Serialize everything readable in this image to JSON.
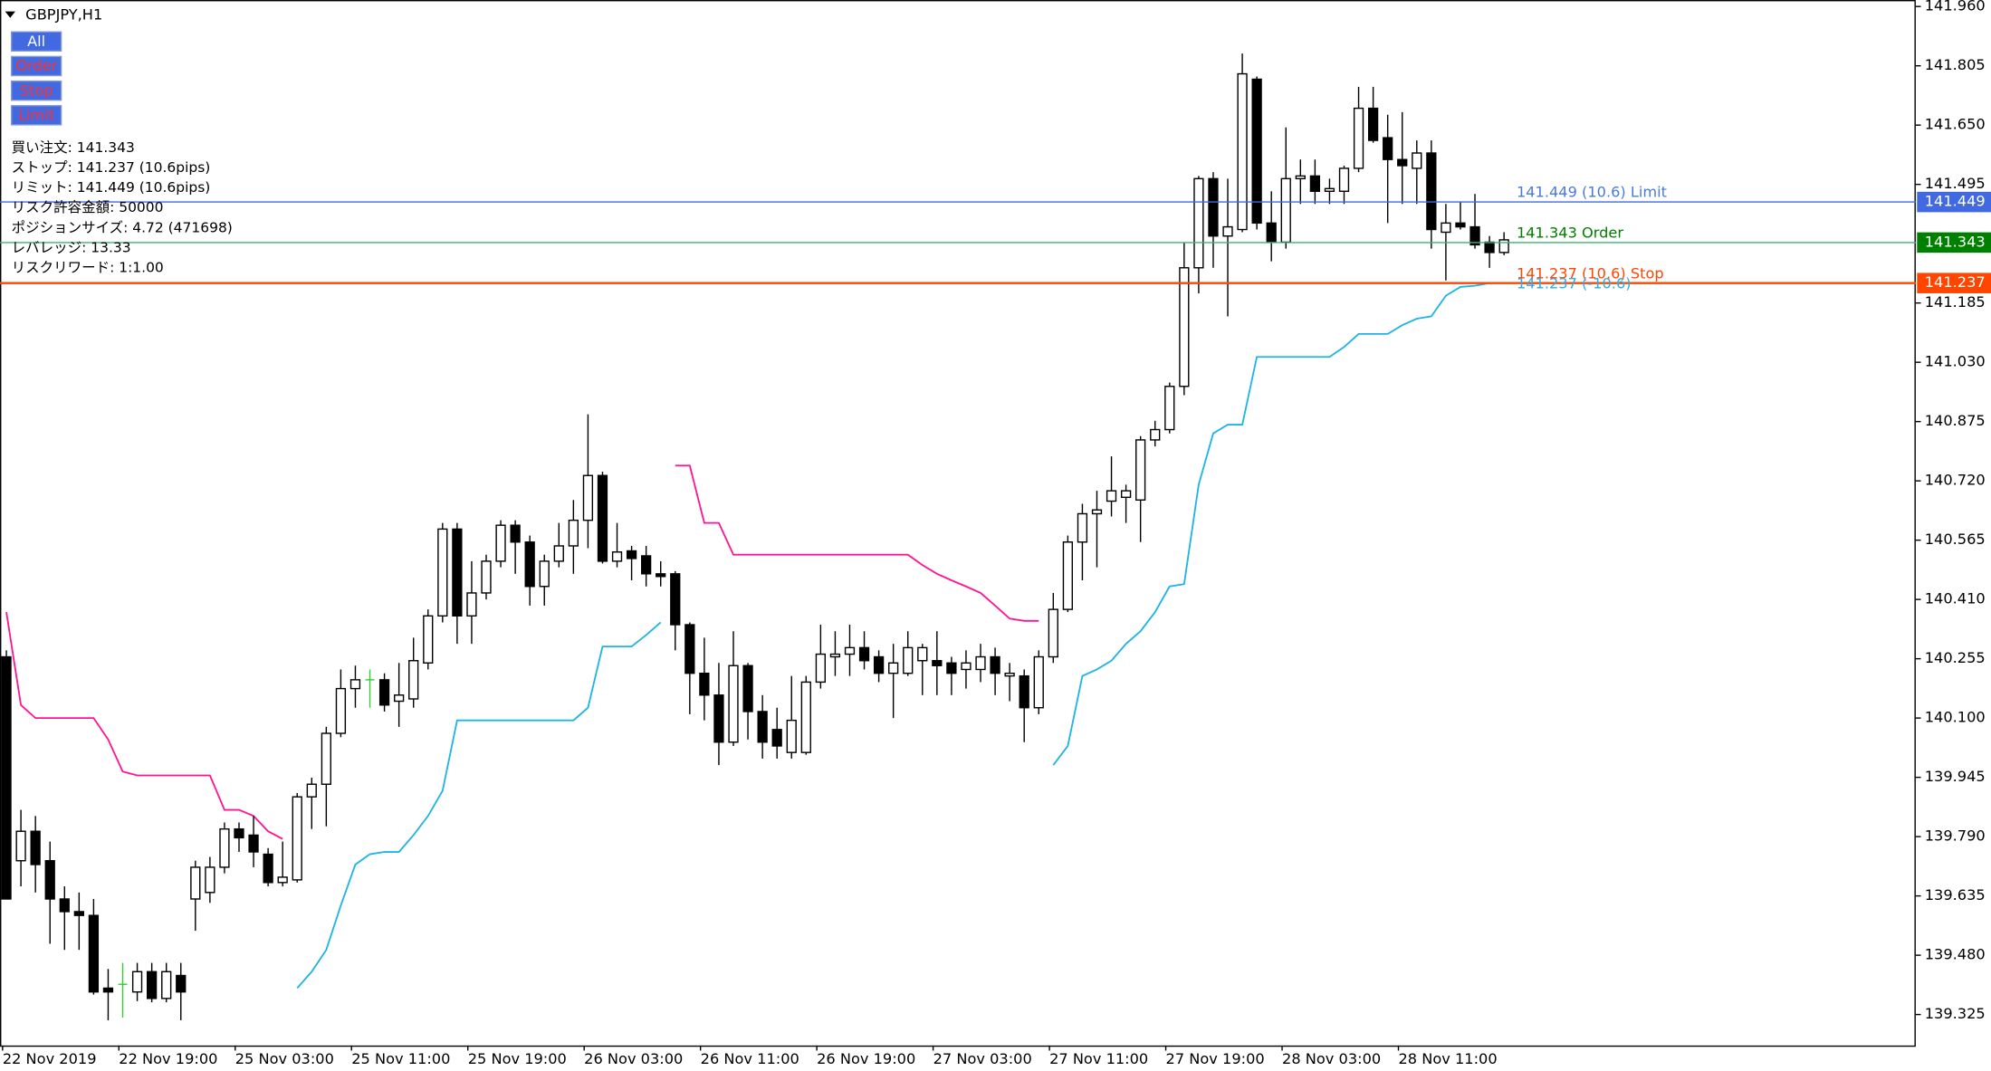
{
  "chart_data": {
    "type": "candlestick",
    "title": "GBPJPY,H1",
    "categories": [
      "22 Nov 2019",
      null,
      null,
      null,
      null,
      null,
      null,
      null,
      "22 Nov 19:00",
      null,
      null,
      null,
      null,
      null,
      null,
      null,
      "25 Nov 03:00",
      null,
      null,
      null,
      null,
      null,
      null,
      null,
      "25 Nov 11:00",
      null,
      null,
      null,
      null,
      null,
      null,
      null,
      "25 Nov 19:00",
      null,
      null,
      null,
      null,
      null,
      null,
      null,
      "26 Nov 03:00",
      null,
      null,
      null,
      null,
      null,
      null,
      null,
      "26 Nov 11:00",
      null,
      null,
      null,
      null,
      null,
      null,
      null,
      "26 Nov 19:00",
      null,
      null,
      null,
      null,
      null,
      null,
      null,
      "27 Nov 03:00",
      null,
      null,
      null,
      null,
      null,
      null,
      null,
      "27 Nov 11:00",
      null,
      null,
      null,
      null,
      null,
      null,
      null,
      "27 Nov 19:00",
      null,
      null,
      null,
      null,
      null,
      null,
      null,
      "28 Nov 03:00",
      null,
      null,
      null,
      null,
      null,
      null,
      null,
      "28 Nov 11:00",
      null,
      null,
      null,
      null,
      null,
      null,
      null
    ],
    "open": [
      140.26,
      139.727,
      139.804,
      139.727,
      139.627,
      139.594,
      139.584,
      139.394,
      139.404,
      139.384,
      139.437,
      139.367,
      139.427,
      139.627,
      139.644,
      139.71,
      139.81,
      139.794,
      139.744,
      139.67,
      139.677,
      139.894,
      139.927,
      140.06,
      140.177,
      140.2,
      140.2,
      140.144,
      140.15,
      140.244,
      140.367,
      140.594,
      140.367,
      140.427,
      140.51,
      140.604,
      140.56,
      140.444,
      140.51,
      140.55,
      140.617,
      140.734,
      140.51,
      140.537,
      140.524,
      140.477,
      140.477,
      140.344,
      140.217,
      140.16,
      140.037,
      140.237,
      140.117,
      140.07,
      140.01,
      140.01,
      140.194,
      140.26,
      140.267,
      140.284,
      140.26,
      140.217,
      140.217,
      140.25,
      140.25,
      140.244,
      140.227,
      140.227,
      140.26,
      140.21,
      140.21,
      140.127,
      140.26,
      140.384,
      140.56,
      140.634,
      140.667,
      140.677,
      140.67,
      140.827,
      140.854,
      140.967,
      141.277,
      141.51,
      141.36,
      141.377,
      141.77,
      141.394,
      141.344,
      141.51,
      141.517,
      141.477,
      141.477,
      141.537,
      141.694,
      141.617,
      141.56,
      141.537,
      141.577,
      141.37,
      141.394,
      141.384,
      141.344,
      141.317
    ],
    "high": [
      140.277,
      139.86,
      139.844,
      139.777,
      139.66,
      139.644,
      139.627,
      139.444,
      139.46,
      139.46,
      139.46,
      139.46,
      139.46,
      139.727,
      139.737,
      139.827,
      139.827,
      139.844,
      139.76,
      139.777,
      139.904,
      139.944,
      140.077,
      140.227,
      140.237,
      140.227,
      140.217,
      140.244,
      140.31,
      140.384,
      140.61,
      140.61,
      140.51,
      140.527,
      140.617,
      140.617,
      140.577,
      140.527,
      140.61,
      140.67,
      140.894,
      140.744,
      140.61,
      140.55,
      140.55,
      140.51,
      140.484,
      140.35,
      140.31,
      140.244,
      140.327,
      140.244,
      140.16,
      140.127,
      140.21,
      140.21,
      140.344,
      140.327,
      140.344,
      140.327,
      140.277,
      140.294,
      140.327,
      140.294,
      140.327,
      140.26,
      140.277,
      140.294,
      140.284,
      140.244,
      140.227,
      140.277,
      140.427,
      140.577,
      140.66,
      140.694,
      140.784,
      140.71,
      140.837,
      140.877,
      140.977,
      141.344,
      141.517,
      141.527,
      141.51,
      141.837,
      141.777,
      141.477,
      141.644,
      141.56,
      141.56,
      141.51,
      141.544,
      141.75,
      141.75,
      141.677,
      141.684,
      141.61,
      141.61,
      141.444,
      141.45,
      141.47,
      141.36,
      141.37
    ],
    "low": [
      139.627,
      139.66,
      139.644,
      139.51,
      139.494,
      139.494,
      139.377,
      139.31,
      139.317,
      139.36,
      139.357,
      139.357,
      139.31,
      139.544,
      139.617,
      139.694,
      139.75,
      139.71,
      139.66,
      139.66,
      139.67,
      139.81,
      139.817,
      140.05,
      140.127,
      140.127,
      140.117,
      140.077,
      140.127,
      140.227,
      140.35,
      140.294,
      140.294,
      140.41,
      140.494,
      140.477,
      140.394,
      140.394,
      140.494,
      140.477,
      140.544,
      140.504,
      140.494,
      140.46,
      140.444,
      140.444,
      140.277,
      140.11,
      140.094,
      139.977,
      140.027,
      140.044,
      139.994,
      139.994,
      139.994,
      140.004,
      140.177,
      140.21,
      140.21,
      140.227,
      140.194,
      140.1,
      140.21,
      140.16,
      140.16,
      140.16,
      140.177,
      140.194,
      140.16,
      140.144,
      140.037,
      140.11,
      140.244,
      140.377,
      140.46,
      140.494,
      140.627,
      140.61,
      140.56,
      140.81,
      140.844,
      140.944,
      141.21,
      141.277,
      141.15,
      141.37,
      141.377,
      141.294,
      141.327,
      141.444,
      141.444,
      141.444,
      141.444,
      141.527,
      141.604,
      141.394,
      141.444,
      141.444,
      141.327,
      141.244,
      141.377,
      141.327,
      141.277,
      141.31
    ],
    "close": [
      139.627,
      139.804,
      139.717,
      139.627,
      139.594,
      139.584,
      139.384,
      139.384,
      139.404,
      139.437,
      139.367,
      139.437,
      139.384,
      139.71,
      139.71,
      139.81,
      139.787,
      139.75,
      139.67,
      139.684,
      139.894,
      139.927,
      140.06,
      140.177,
      140.2,
      140.2,
      140.134,
      140.16,
      140.25,
      140.367,
      140.594,
      140.367,
      140.427,
      140.51,
      140.604,
      140.56,
      140.444,
      140.51,
      140.55,
      140.617,
      140.734,
      140.51,
      140.534,
      140.517,
      140.477,
      140.47,
      140.344,
      140.217,
      140.16,
      140.037,
      140.237,
      140.117,
      140.037,
      140.027,
      140.094,
      140.194,
      140.267,
      140.267,
      140.284,
      140.25,
      140.217,
      140.244,
      140.284,
      140.284,
      140.237,
      140.217,
      140.244,
      140.26,
      140.217,
      140.217,
      140.127,
      140.26,
      140.384,
      140.56,
      140.634,
      140.644,
      140.694,
      140.694,
      140.827,
      140.854,
      140.967,
      141.277,
      141.51,
      141.36,
      141.384,
      141.784,
      141.394,
      141.344,
      141.51,
      141.517,
      141.477,
      141.484,
      141.537,
      141.694,
      141.61,
      141.56,
      141.544,
      141.577,
      141.377,
      141.394,
      141.384,
      141.337,
      141.317,
      141.35
    ],
    "up_color": "#ffffff",
    "down_color": "#000000",
    "doji_color": "#32cd32",
    "lines": [
      {
        "color": "#ff1493",
        "values": [
          140.377,
          140.134,
          140.1,
          140.1,
          140.1,
          140.1,
          140.1,
          140.044,
          139.96,
          139.95,
          139.95,
          139.95,
          139.95,
          139.95,
          139.95,
          139.86,
          139.86,
          139.844,
          139.804,
          139.784,
          null,
          null,
          null,
          null,
          null,
          null,
          null,
          null,
          null,
          null,
          null,
          null,
          null,
          null,
          null,
          null,
          null,
          null,
          null,
          null,
          null,
          null,
          null,
          null,
          null,
          null,
          140.76,
          140.76,
          140.61,
          140.61,
          140.527,
          140.527,
          140.527,
          140.527,
          140.527,
          140.527,
          140.527,
          140.527,
          140.527,
          140.527,
          140.527,
          140.527,
          140.527,
          140.5,
          140.477,
          140.46,
          140.444,
          140.427,
          140.394,
          140.36,
          140.354,
          140.354,
          null,
          null,
          null,
          null,
          null,
          null,
          null,
          null,
          null,
          null,
          null,
          null,
          null,
          null,
          null,
          null,
          null,
          null,
          null,
          null,
          null,
          null,
          null,
          null,
          null,
          null,
          null,
          null,
          null,
          null,
          null,
          null
        ]
      },
      {
        "color": "#1eb4e6",
        "values": [
          null,
          null,
          null,
          null,
          null,
          null,
          null,
          null,
          null,
          null,
          null,
          null,
          null,
          null,
          null,
          null,
          null,
          null,
          null,
          null,
          139.394,
          139.437,
          139.494,
          139.61,
          139.717,
          139.744,
          139.75,
          139.75,
          139.794,
          139.844,
          139.91,
          140.094,
          140.094,
          140.094,
          140.094,
          140.094,
          140.094,
          140.094,
          140.094,
          140.094,
          140.127,
          140.287,
          140.287,
          140.287,
          140.317,
          140.35,
          null,
          null,
          null,
          null,
          null,
          null,
          null,
          null,
          null,
          null,
          null,
          null,
          null,
          null,
          null,
          null,
          null,
          null,
          null,
          null,
          null,
          null,
          null,
          null,
          null,
          null,
          139.977,
          140.027,
          140.21,
          140.227,
          140.25,
          140.294,
          140.327,
          140.377,
          140.444,
          140.45,
          140.71,
          140.844,
          140.867,
          140.867,
          141.044,
          141.044,
          141.044,
          141.044,
          141.044,
          141.044,
          141.07,
          141.104,
          141.104,
          141.104,
          141.127,
          141.144,
          141.15,
          141.204,
          141.227,
          141.23,
          141.237,
          141.237
        ]
      }
    ],
    "levels": [
      {
        "value": 141.449,
        "label": "141.449 (10.6)  Limit",
        "color": "#4169e1",
        "text_color": "#4a7ad8"
      },
      {
        "value": 141.343,
        "label": "141.343  Order",
        "color": "#3cb371",
        "text_color": "#008000",
        "tag_color": "#008000"
      },
      {
        "value": 141.237,
        "label": "141.237 (10.6)  Stop",
        "color": "#ff4500",
        "text_color": "#ff4500"
      }
    ],
    "annotation": {
      "value": 141.237,
      "text": "141.237 (-10.6)",
      "color": "#2aaee6"
    },
    "ylim": [
      139.244,
      141.977
    ],
    "yticks": [
      {
        "value": 141.96,
        "label": "141.960"
      },
      141.805,
      {
        "value": 141.65,
        "label": "141.650"
      },
      141.495,
      141.185,
      {
        "value": 141.03,
        "label": "141.030"
      },
      140.875,
      {
        "value": 140.72,
        "label": "140.720"
      },
      140.565,
      {
        "value": 140.41,
        "label": "140.410"
      },
      140.255,
      {
        "value": 140.1,
        "label": "140.100"
      },
      139.945,
      {
        "value": 139.79,
        "label": "139.790"
      },
      139.635,
      {
        "value": 139.48,
        "label": "139.480"
      },
      139.325
    ]
  },
  "buttons": [
    "All",
    "Order",
    "Stop",
    "Limit"
  ],
  "info": [
    "買い注文: 141.343",
    "ストップ: 141.237 (10.6pips)",
    "リミット: 141.449 (10.6pips)",
    "リスク許容金額: 50000",
    "ポジションサイズ: 4.72 (471698)",
    "レバレッジ: 13.33",
    "リスクリワード: 1:1.00"
  ]
}
